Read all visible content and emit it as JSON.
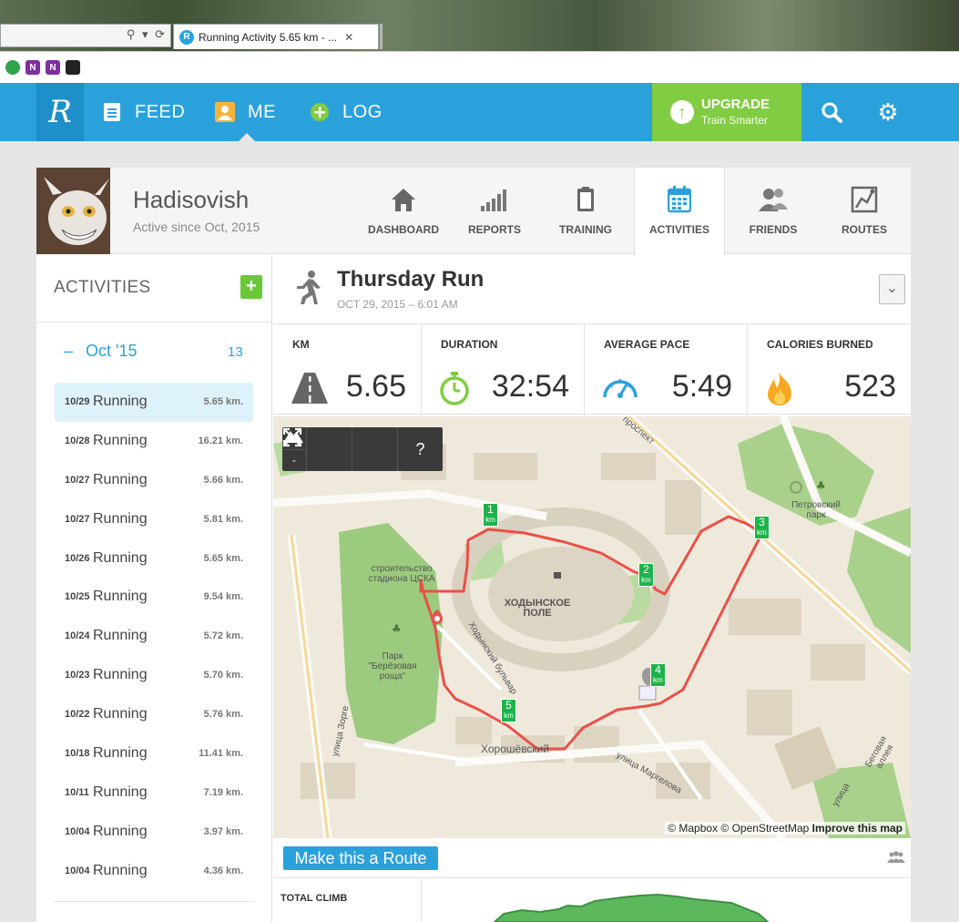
{
  "browser": {
    "tab_title": "Running Activity 5.65 km - ...",
    "tab_favicon_letter": "R",
    "address_tools": "⚲ ▾ ⟳",
    "favorites": [
      {
        "icon": "green-circle-icon",
        "letter": "",
        "color": "#2ea44f"
      },
      {
        "icon": "onenote-icon",
        "letter": "N",
        "color": "#7b2fa0"
      },
      {
        "icon": "onenote-icon",
        "letter": "N",
        "color": "#7b2fa0"
      },
      {
        "icon": "evernote-icon",
        "letter": "",
        "color": "#222222"
      }
    ]
  },
  "nav": {
    "logo": "R",
    "items": [
      {
        "label": "FEED",
        "icon": "feed-icon"
      },
      {
        "label": "ME",
        "icon": "user-icon"
      },
      {
        "label": "LOG",
        "icon": "plus-circle-icon"
      }
    ],
    "upgrade_title": "UPGRADE",
    "upgrade_sub": "Train Smarter",
    "accent": "#2ba1dc",
    "upgrade_color": "#82cc44"
  },
  "profile": {
    "name": "Hadisovish",
    "since": "Active since Oct, 2015",
    "tabs": [
      {
        "label": "DASHBOARD",
        "icon": "home-icon"
      },
      {
        "label": "REPORTS",
        "icon": "bars-icon"
      },
      {
        "label": "TRAINING",
        "icon": "clipboard-icon"
      },
      {
        "label": "ACTIVITIES",
        "icon": "calendar-icon"
      },
      {
        "label": "FRIENDS",
        "icon": "friends-icon"
      },
      {
        "label": "ROUTES",
        "icon": "route-map-icon"
      }
    ],
    "active_tab": "ACTIVITIES"
  },
  "sidebar": {
    "title": "ACTIVITIES",
    "add_label": "+",
    "month_dash": "–",
    "month": "Oct '15",
    "month_count": "13",
    "activities": [
      {
        "date": "10/29",
        "type": "Running",
        "distance": "5.65 km.",
        "selected": true
      },
      {
        "date": "10/28",
        "type": "Running",
        "distance": "16.21 km."
      },
      {
        "date": "10/27",
        "type": "Running",
        "distance": "5.66 km."
      },
      {
        "date": "10/27",
        "type": "Running",
        "distance": "5.81 km."
      },
      {
        "date": "10/26",
        "type": "Running",
        "distance": "5.65 km."
      },
      {
        "date": "10/25",
        "type": "Running",
        "distance": "9.54 km."
      },
      {
        "date": "10/24",
        "type": "Running",
        "distance": "5.72 km."
      },
      {
        "date": "10/23",
        "type": "Running",
        "distance": "5.70 km."
      },
      {
        "date": "10/22",
        "type": "Running",
        "distance": "5.76 km."
      },
      {
        "date": "10/18",
        "type": "Running",
        "distance": "11.41 km."
      },
      {
        "date": "10/11",
        "type": "Running",
        "distance": "7.19 km."
      },
      {
        "date": "10/04",
        "type": "Running",
        "distance": "3.97 km."
      },
      {
        "date": "10/04",
        "type": "Running",
        "distance": "4.36 km."
      }
    ]
  },
  "activity": {
    "title": "Thursday Run",
    "date": "OCT 29, 2015",
    "separator": "–",
    "time": "6:01 AM",
    "menu": "⌄",
    "stats": {
      "km_label": "KM",
      "km_value": "5.65",
      "duration_label": "DURATION",
      "duration_value": "32:54",
      "pace_label": "AVERAGE PACE",
      "pace_value": "5:49",
      "calories_label": "CALORIES BURNED",
      "calories_value": "523"
    }
  },
  "map": {
    "controls": {
      "zoom_in": "+",
      "zoom_out": "-",
      "fullscreen": "⤢",
      "terrain": "▲",
      "help": "?"
    },
    "attribution_prefix": "© Mapbox © OpenStreetMap",
    "attribution_link": "Improve this map",
    "km_markers": [
      {
        "n": "1",
        "unit": "km"
      },
      {
        "n": "2",
        "unit": "km"
      },
      {
        "n": "3",
        "unit": "km"
      },
      {
        "n": "4",
        "unit": "km"
      },
      {
        "n": "5",
        "unit": "km"
      }
    ],
    "labels": {
      "prospect": "проспект",
      "petrovsky_park": "Петровский парк",
      "stadium": "строительство стадиона ЦСКА",
      "khodynskoe": "ХОДЫНСКОЕ ПОЛЕ",
      "khodynsky_bulvar": "Ходынский бульвар",
      "park_berezovaya": "Парк \"Берёзовая роща\"",
      "ulitsa_zorge": "улица Зорге",
      "khoroshevsky": "Хорошёвский",
      "ulitsa_margelova": "улица Маргелова",
      "begovaya": "Беговая аллея",
      "ulitsa": "улица"
    },
    "route_color": "#e8514a"
  },
  "route": {
    "button": "Make this a Route",
    "people_icon": "people-icon"
  },
  "climb": {
    "label": "TOTAL CLIMB"
  }
}
